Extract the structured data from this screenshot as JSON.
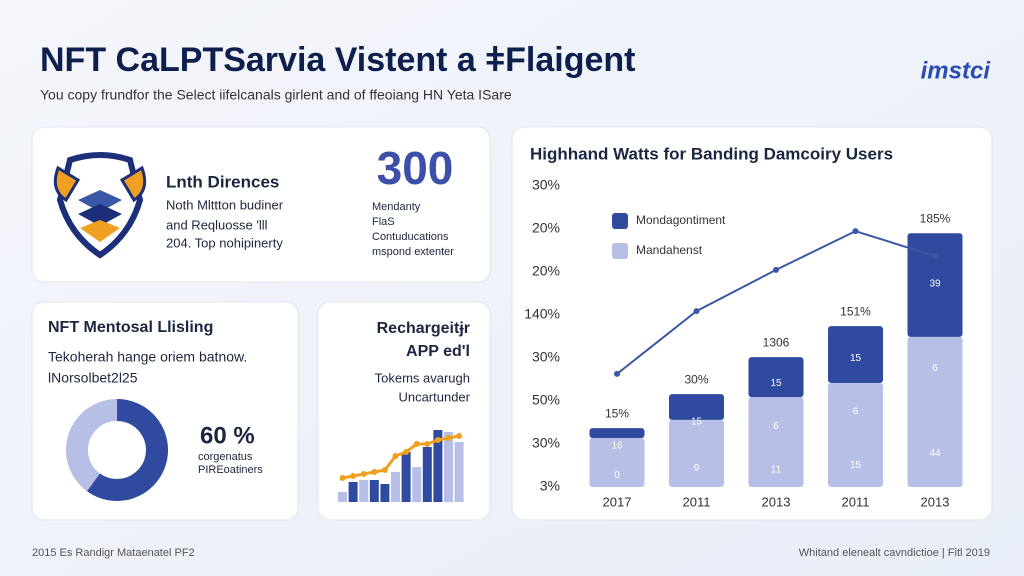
{
  "header": {
    "title": "NFT CaLPTSarvia Vistent a ǂFlaigent",
    "subtitle": "You copy frundfor the Select iifelcanals girlent and of ffeoiang HN Yeta ISare",
    "logo": "imstci"
  },
  "card1": {
    "heading": "Lnth Dirences",
    "lines": [
      "Noth Mlttton budiner",
      "and Reqluosse 'lll",
      "204. Top nohipinerty"
    ],
    "big_number": "300",
    "notes": [
      "Mendanty",
      "FlaS",
      "Contuducations",
      "mspond extenter"
    ]
  },
  "chart_data": [
    {
      "type": "pie",
      "title": "NFT Mentosal Llisling",
      "lines": [
        "Tekoherah hange oriem batnow.",
        "lNorsolbet2l25"
      ],
      "values": [
        60
      ],
      "value_labels": [
        "60 %"
      ],
      "color": "#2f4a9e",
      "track_color": "#b7bfe6",
      "notes": [
        "corgenatus",
        "PIREoatiners"
      ]
    },
    {
      "type": "minibar",
      "title_lines": [
        "Rechargeitɉr",
        "APP ed'l"
      ],
      "notes": [
        "Tokems avarugh",
        "Uncartunder"
      ],
      "values": [
        10,
        20,
        22,
        22,
        18,
        30,
        50,
        35,
        55,
        72,
        70,
        60
      ],
      "colors": [
        "#b7bfe6",
        "#2f4a9e",
        "#b7bfe6",
        "#2f4a9e",
        "#2f4a9e",
        "#b7bfe6",
        "#2f4a9e",
        "#b7bfe6",
        "#2f4a9e",
        "#2f4a9e",
        "#b7bfe6",
        "#b7bfe6"
      ],
      "line_values": [
        24,
        26,
        28,
        30,
        32,
        46,
        50,
        58,
        58,
        62,
        64,
        66
      ],
      "line_color": "#f0a020"
    },
    {
      "type": "stacked",
      "title": "Highhand Watts for Banding Damcoiry Users",
      "categories": [
        "2017",
        "2011",
        "2013",
        "2011",
        "2013"
      ],
      "ylim": [
        0,
        7
      ],
      "yticks": [
        {
          "value": 0,
          "label": "3%"
        },
        {
          "value": 1,
          "label": "30%"
        },
        {
          "value": 2,
          "label": "50%"
        },
        {
          "value": 3,
          "label": "30%"
        },
        {
          "value": 4,
          "label": "140%"
        },
        {
          "value": 5,
          "label": "20%"
        },
        {
          "value": 6,
          "label": "20%"
        },
        {
          "value": 7,
          "label": "30%"
        }
      ],
      "series": [
        {
          "name": "Mandahenst",
          "color": "#b7bfe6",
          "values": [
            1.14,
            1.56,
            2.09,
            2.42,
            3.49
          ]
        },
        {
          "name": "Mondagontiment",
          "color": "#2f4a9e",
          "values": [
            0.23,
            0.6,
            0.93,
            1.32,
            2.41
          ]
        }
      ],
      "line_values": [
        2.63,
        4.09,
        5.05,
        5.95,
        5.37
      ],
      "line_color": "#3b58a8",
      "annotations": [
        "15%",
        "30%",
        "1306",
        "151%",
        "185%"
      ],
      "inner_labels": [
        [
          "16",
          "0"
        ],
        [
          "15",
          "9"
        ],
        [
          "15",
          "6",
          "11"
        ],
        [
          "15",
          "6",
          "15"
        ],
        [
          "39",
          "6",
          "44"
        ]
      ]
    }
  ],
  "footer": {
    "left": "2015 Es Randigr Mataenatel PF2",
    "right": "Whitand elenealt cavndictioe | Fitl 2019"
  }
}
